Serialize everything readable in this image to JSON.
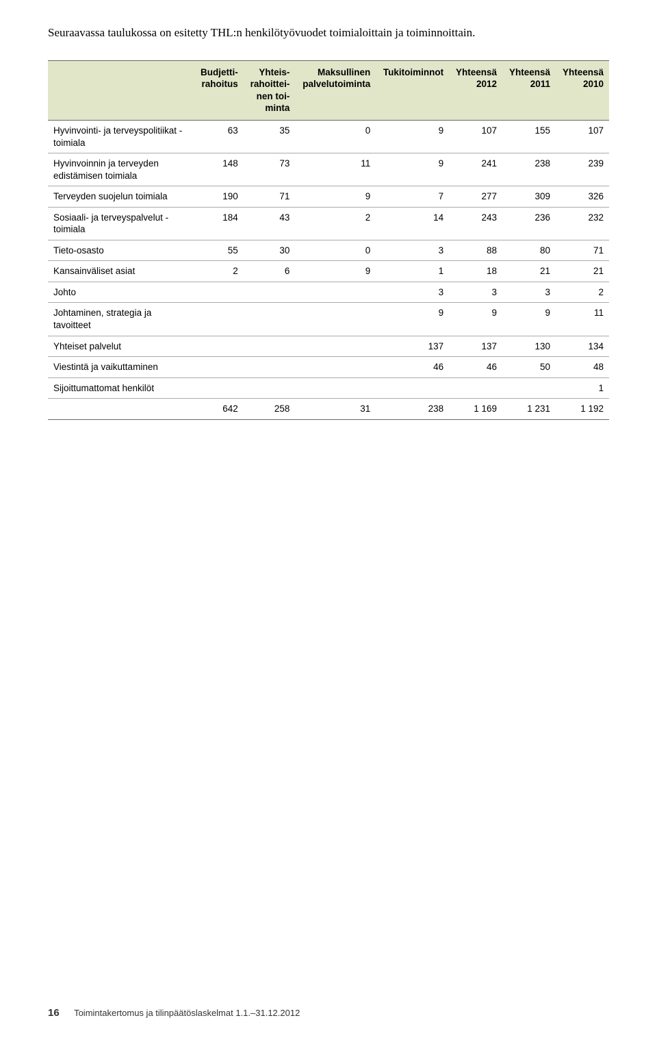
{
  "intro": "Seuraavassa taulukossa on esitetty THL:n henkilötyövuodet toimialoittain ja toiminnoittain.",
  "table": {
    "columns": [
      "",
      "Budjetti-\nrahoitus",
      "Yhteis-\nrahoittei-\nnen toi-\nminta",
      "Maksullinen\npalvelutoiminta",
      "Tukitoiminnot",
      "Yhteensä\n2012",
      "Yhteensä\n2011",
      "Yhteensä\n2010"
    ],
    "rows": [
      [
        "Hyvinvointi- ja terveyspolitiikat -toimiala",
        "63",
        "35",
        "0",
        "9",
        "107",
        "155",
        "107"
      ],
      [
        "Hyvinvoinnin ja terveyden edistämisen toimiala",
        "148",
        "73",
        "11",
        "9",
        "241",
        "238",
        "239"
      ],
      [
        "Terveyden suojelun toimiala",
        "190",
        "71",
        "9",
        "7",
        "277",
        "309",
        "326"
      ],
      [
        "Sosiaali- ja terveyspalvelut -toimiala",
        "184",
        "43",
        "2",
        "14",
        "243",
        "236",
        "232"
      ],
      [
        "Tieto-osasto",
        "55",
        "30",
        "0",
        "3",
        "88",
        "80",
        "71"
      ],
      [
        "Kansainväliset asiat",
        "2",
        "6",
        "9",
        "1",
        "18",
        "21",
        "21"
      ],
      [
        "Johto",
        "",
        "",
        "",
        "3",
        "3",
        "3",
        "2"
      ],
      [
        "Johtaminen, strategia ja tavoitteet",
        "",
        "",
        "",
        "9",
        "9",
        "9",
        "11"
      ],
      [
        "Yhteiset palvelut",
        "",
        "",
        "",
        "137",
        "137",
        "130",
        "134"
      ],
      [
        "Viestintä ja vaikuttaminen",
        "",
        "",
        "",
        "46",
        "46",
        "50",
        "48"
      ],
      [
        "Sijoittumattomat henkilöt",
        "",
        "",
        "",
        "",
        "",
        "",
        "1"
      ],
      [
        "",
        "642",
        "258",
        "31",
        "238",
        "1 169",
        "1 231",
        "1 192"
      ]
    ]
  },
  "footer": {
    "page": "16",
    "text": "Toimintakertomus ja tilinpäätöslaskelmat 1.1.–31.12.2012"
  }
}
